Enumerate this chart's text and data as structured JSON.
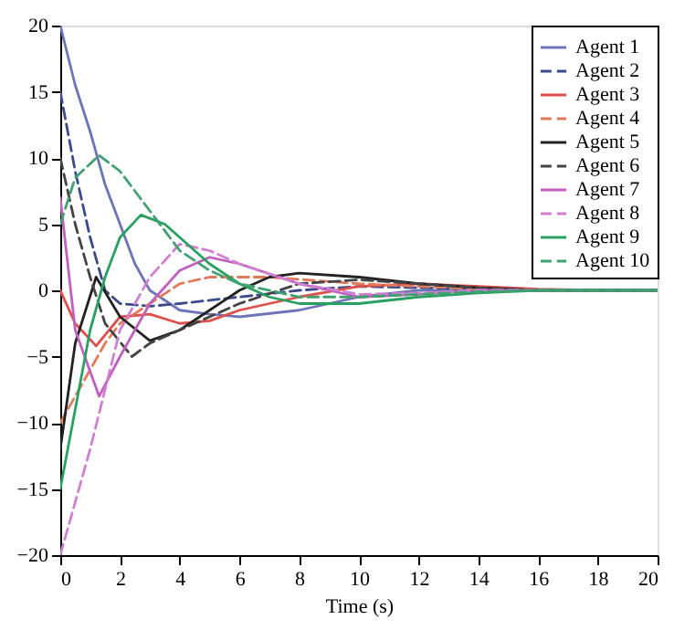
{
  "chart_data": {
    "type": "line",
    "xlabel": "Time (s)",
    "xlim": [
      0,
      20
    ],
    "xticks": [
      0,
      2,
      4,
      6,
      8,
      10,
      12,
      14,
      16,
      18,
      20
    ],
    "ylim": [
      -20,
      20
    ],
    "yticks": [
      -20,
      -15,
      -10,
      -5,
      0,
      5,
      10,
      15,
      20
    ],
    "grid": false,
    "legend": "top right",
    "marker": "none",
    "series": [
      {
        "name": "Agent 1",
        "color": "#6e74b8",
        "line_style": "solid",
        "x": [
          0,
          0.5,
          1,
          1.5,
          2,
          2.5,
          3,
          4,
          5,
          6,
          8,
          10,
          12,
          14,
          16,
          18,
          20
        ],
        "values": [
          20,
          15.5,
          12,
          8,
          5,
          2,
          0,
          -1.5,
          -1.8,
          -2,
          -1.5,
          -0.5,
          0,
          0,
          0,
          0,
          0
        ]
      },
      {
        "name": "Agent 2",
        "color": "#3a4a8a",
        "line_style": "dashed",
        "x": [
          0,
          0.5,
          1,
          1.5,
          2,
          3,
          4,
          6,
          8,
          10,
          12,
          14,
          16,
          18,
          20
        ],
        "values": [
          15,
          9,
          4,
          0,
          -1,
          -1.2,
          -1,
          -0.5,
          0,
          0.3,
          0.2,
          0.1,
          0,
          0,
          0
        ]
      },
      {
        "name": "Agent 3",
        "color": "#e0504a",
        "line_style": "solid",
        "x": [
          0,
          0.5,
          1.2,
          2,
          3,
          4,
          5,
          6,
          8,
          10,
          12,
          14,
          16,
          18,
          20
        ],
        "values": [
          0,
          -2.5,
          -4.2,
          -2,
          -1.8,
          -2.5,
          -2.3,
          -1.5,
          -0.5,
          0.3,
          0.5,
          0.3,
          0.1,
          0,
          0
        ]
      },
      {
        "name": "Agent 4",
        "color": "#e07a5a",
        "line_style": "dashed",
        "x": [
          0,
          1,
          1.5,
          2,
          3,
          4,
          5,
          7,
          10,
          12,
          14,
          16,
          18,
          20
        ],
        "values": [
          -10,
          -6,
          -4,
          -2.5,
          -1,
          0.5,
          1,
          1,
          0.5,
          0.3,
          0.1,
          0,
          0,
          0
        ]
      },
      {
        "name": "Agent 5",
        "color": "#222222",
        "line_style": "solid",
        "x": [
          0,
          0.5,
          1.2,
          2,
          3,
          4,
          5,
          6,
          7,
          8,
          10,
          12,
          14,
          16,
          18,
          20
        ],
        "values": [
          -12,
          -4,
          1,
          -2,
          -3.8,
          -3,
          -1.5,
          0,
          1,
          1.3,
          1,
          0.5,
          0.2,
          0,
          0,
          0
        ]
      },
      {
        "name": "Agent 6",
        "color": "#444444",
        "line_style": "dashed",
        "x": [
          0,
          0.5,
          1,
          1.5,
          2.4,
          3,
          4,
          6,
          8,
          10,
          12,
          14,
          16,
          18,
          20
        ],
        "values": [
          10,
          5,
          1,
          -2.5,
          -5,
          -4,
          -3,
          -1,
          0.5,
          0.8,
          0.5,
          0.2,
          0,
          0,
          0
        ]
      },
      {
        "name": "Agent 7",
        "color": "#c060c0",
        "line_style": "solid",
        "x": [
          0,
          0.5,
          1.3,
          2,
          3,
          4,
          5,
          6,
          8,
          10,
          12,
          14,
          16,
          18,
          20
        ],
        "values": [
          7,
          -3,
          -8,
          -5,
          -1,
          1.5,
          2.5,
          2,
          0.5,
          -0.5,
          -0.3,
          0,
          0,
          0,
          0
        ]
      },
      {
        "name": "Agent 8",
        "color": "#d080d0",
        "line_style": "dashed",
        "x": [
          0,
          1,
          2,
          3,
          4,
          5,
          6,
          8,
          10,
          12,
          14,
          16,
          18,
          20
        ],
        "values": [
          -20,
          -12,
          -3,
          1,
          3.5,
          3,
          2,
          0.5,
          -0.3,
          -0.2,
          0,
          0,
          0,
          0
        ]
      },
      {
        "name": "Agent 9",
        "color": "#2aa060",
        "line_style": "solid",
        "x": [
          0,
          1,
          1.5,
          2,
          2.7,
          3.5,
          4,
          5,
          6,
          7,
          8,
          10,
          12,
          14,
          16,
          18,
          20
        ],
        "values": [
          -15,
          -3,
          1,
          4,
          5.7,
          5,
          4,
          2,
          0.5,
          -0.5,
          -1,
          -1,
          -0.5,
          -0.2,
          0,
          0,
          0
        ]
      },
      {
        "name": "Agent 10",
        "color": "#40a070",
        "line_style": "dashed",
        "x": [
          0,
          0.5,
          1.3,
          2,
          3,
          4,
          5,
          6,
          8,
          10,
          12,
          14,
          16,
          18,
          20
        ],
        "values": [
          5,
          8.5,
          10.2,
          9,
          6,
          3,
          1.5,
          0.5,
          -0.5,
          -0.5,
          -0.3,
          -0.1,
          0,
          0,
          0
        ]
      }
    ]
  }
}
